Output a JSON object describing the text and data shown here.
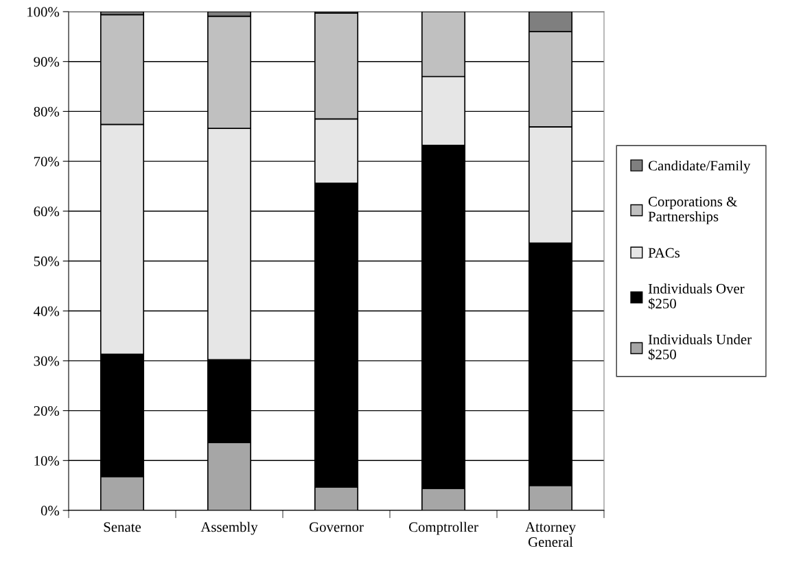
{
  "chart_data": {
    "type": "bar",
    "stacked": true,
    "categories": [
      "Senate",
      "Assembly",
      "Governor",
      "Comptroller",
      "Attorney\nGeneral"
    ],
    "series": [
      {
        "name": "Individuals Under\n$250",
        "color": "#a6a6a6",
        "values": [
          6.8,
          13.6,
          4.7,
          4.4,
          5.0
        ]
      },
      {
        "name": "Individuals Over\n$250",
        "color": "#000000",
        "values": [
          24.5,
          16.6,
          60.9,
          68.8,
          48.6
        ]
      },
      {
        "name": "PACs",
        "color": "#e6e6e6",
        "values": [
          46.1,
          46.4,
          12.9,
          13.8,
          23.3
        ]
      },
      {
        "name": "Corporations &\nPartnerships",
        "color": "#c0c0c0",
        "values": [
          22.0,
          22.5,
          21.2,
          13.0,
          19.1
        ]
      },
      {
        "name": "Candidate/Family",
        "color": "#7f7f7f",
        "values": [
          0.6,
          0.9,
          0.3,
          null,
          4.0
        ]
      }
    ],
    "ylim": [
      0,
      100
    ],
    "yticks": [
      {
        "value": 0,
        "label": "0%"
      },
      {
        "value": 10,
        "label": "10%"
      },
      {
        "value": 20,
        "label": "20%"
      },
      {
        "value": 30,
        "label": "30%"
      },
      {
        "value": 40,
        "label": "40%"
      },
      {
        "value": 50,
        "label": "50%"
      },
      {
        "value": 60,
        "label": "60%"
      },
      {
        "value": 70,
        "label": "70%"
      },
      {
        "value": 80,
        "label": "80%"
      },
      {
        "value": 90,
        "label": "90%"
      },
      {
        "value": 100,
        "label": "100%"
      }
    ],
    "grid": "y",
    "legend": "right"
  }
}
